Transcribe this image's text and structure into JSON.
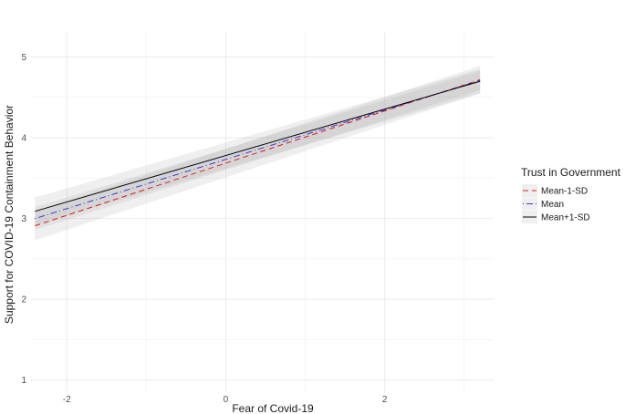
{
  "chart_data": {
    "type": "line",
    "title": "",
    "xlabel": "Fear of Covid-19",
    "ylabel": "Support for COVID-19 Containment Behavior",
    "xlim": [
      -2.45,
      3.37
    ],
    "ylim": [
      0.85,
      5.3
    ],
    "x_ticks": [
      -2,
      0,
      2
    ],
    "x_tick_labels": [
      "-2",
      "0",
      "2"
    ],
    "y_ticks": [
      1,
      2,
      3,
      4,
      5
    ],
    "y_tick_labels": [
      "1",
      "2",
      "3",
      "4",
      "5"
    ],
    "grid": true,
    "legend": {
      "title": "Trust in Government",
      "position": "right"
    },
    "series": [
      {
        "name": "Mean-1-SD",
        "x": [
          -2.4,
          3.2
        ],
        "y": [
          2.91,
          4.72
        ],
        "ci_lower": [
          2.73,
          4.55
        ],
        "ci_upper": [
          3.09,
          4.89
        ],
        "color": "#e41a1c",
        "dash": "dashed"
      },
      {
        "name": "Mean",
        "x": [
          -2.4,
          3.2
        ],
        "y": [
          3.0,
          4.71
        ],
        "ci_lower": [
          2.86,
          4.59
        ],
        "ci_upper": [
          3.14,
          4.83
        ],
        "color": "#3b3bdb",
        "dash": "dotdash"
      },
      {
        "name": "Mean+1-SD",
        "x": [
          -2.4,
          3.2
        ],
        "y": [
          3.09,
          4.7
        ],
        "ci_lower": [
          2.92,
          4.55
        ],
        "ci_upper": [
          3.26,
          4.85
        ],
        "color": "#000000",
        "dash": "solid"
      }
    ]
  }
}
